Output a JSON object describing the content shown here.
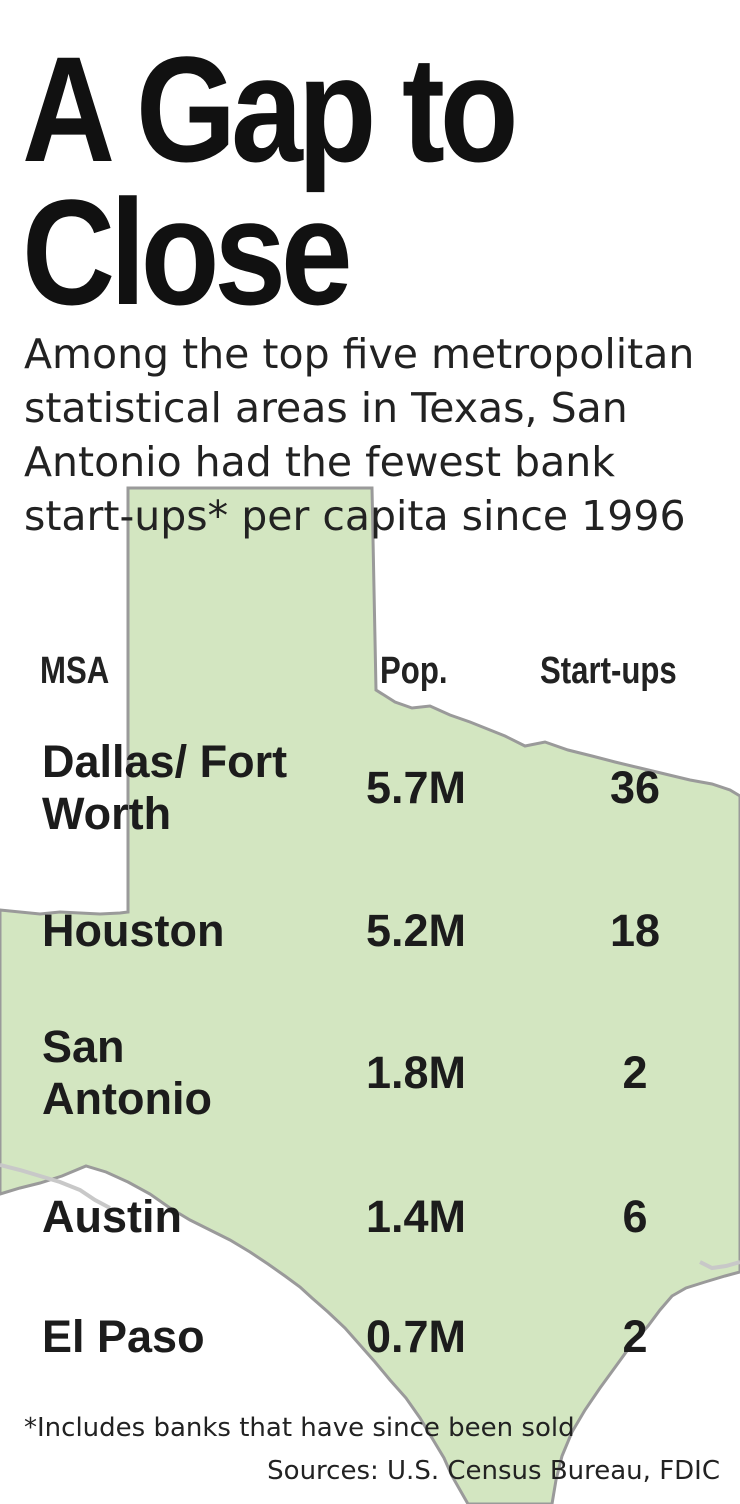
{
  "title_line1": "A Gap to",
  "title_line2": "Close",
  "subtitle": "Among the top five metropolitan statistical areas in Texas, San Antonio had the fewest bank start-ups* per capita since 1996",
  "columns": {
    "msa": "MSA",
    "pop": "Pop.",
    "startups": "Start-ups"
  },
  "footnote": "*Includes banks that have since been sold",
  "sources": "Sources: U.S. Census Bureau, FDIC",
  "colors": {
    "map_fill": "#d3e6c1",
    "map_border": "#9a9a9a",
    "text": "#1c1c1c"
  },
  "chart_data": {
    "type": "table",
    "title": "A Gap to Close",
    "columns": [
      "MSA",
      "Pop.",
      "Start-ups"
    ],
    "rows": [
      {
        "msa": "Dallas/ Fort Worth",
        "pop": "5.7M",
        "startups": 36
      },
      {
        "msa": "Houston",
        "pop": "5.2M",
        "startups": 18
      },
      {
        "msa": "San Antonio",
        "pop": "1.8M",
        "startups": 2
      },
      {
        "msa": "Austin",
        "pop": "1.4M",
        "startups": 6
      },
      {
        "msa": "El Paso",
        "pop": "0.7M",
        "startups": 2
      }
    ]
  }
}
